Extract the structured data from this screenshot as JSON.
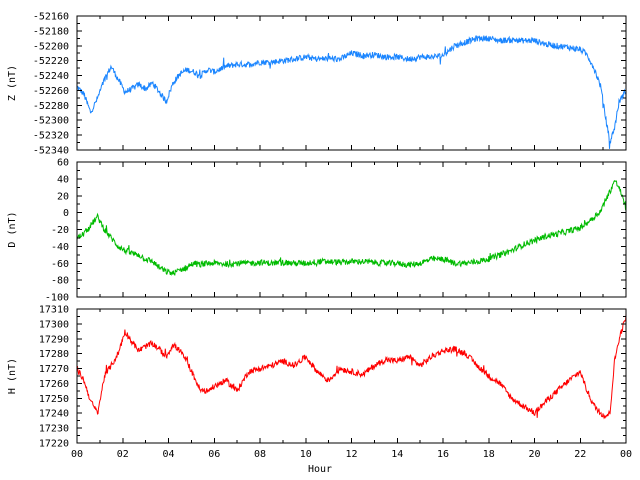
{
  "chart_data": {
    "type": "line",
    "xlabel": "Hour",
    "x_tick_labels": [
      "00",
      "02",
      "04",
      "06",
      "08",
      "10",
      "12",
      "14",
      "16",
      "18",
      "20",
      "22",
      "00"
    ],
    "xlim": [
      0,
      24
    ],
    "grid": false,
    "panels": [
      {
        "name": "Z",
        "ylabel": "Z (nT)",
        "color": "#1a85ff",
        "ylim": [
          -52340,
          -52160
        ],
        "yticks": [
          -52340,
          -52320,
          -52300,
          -52280,
          -52260,
          -52240,
          -52220,
          -52200,
          -52180,
          -52160
        ],
        "series": {
          "x": [
            0,
            0.3,
            0.6,
            0.9,
            1.2,
            1.5,
            1.8,
            2.1,
            2.4,
            2.7,
            3.0,
            3.3,
            3.6,
            3.9,
            4.2,
            4.5,
            4.8,
            5.1,
            5.4,
            5.7,
            6.0,
            6.5,
            7.0,
            7.5,
            8.0,
            8.5,
            9.0,
            9.5,
            10.0,
            10.5,
            11.0,
            11.5,
            12.0,
            12.5,
            13.0,
            13.5,
            14.0,
            14.5,
            15.0,
            15.5,
            16.0,
            16.5,
            17.0,
            17.5,
            18.0,
            18.5,
            19.0,
            19.5,
            20.0,
            20.5,
            21.0,
            21.5,
            22.0,
            22.3,
            22.6,
            22.9,
            23.1,
            23.3,
            23.5,
            23.7,
            24.0
          ],
          "values": [
            -52255,
            -52265,
            -52290,
            -52270,
            -52245,
            -52228,
            -52245,
            -52262,
            -52258,
            -52252,
            -52258,
            -52250,
            -52262,
            -52275,
            -52250,
            -52238,
            -52232,
            -52235,
            -52240,
            -52232,
            -52235,
            -52228,
            -52225,
            -52225,
            -52222,
            -52222,
            -52220,
            -52218,
            -52215,
            -52218,
            -52217,
            -52218,
            -52210,
            -52213,
            -52212,
            -52215,
            -52215,
            -52218,
            -52215,
            -52215,
            -52213,
            -52200,
            -52195,
            -52190,
            -52190,
            -52193,
            -52192,
            -52193,
            -52193,
            -52198,
            -52200,
            -52202,
            -52205,
            -52212,
            -52230,
            -52255,
            -52295,
            -52330,
            -52310,
            -52275,
            -52260
          ]
        }
      },
      {
        "name": "D",
        "ylabel": "D (nT)",
        "color": "#00bb00",
        "ylim": [
          -100,
          60
        ],
        "yticks": [
          -100,
          -80,
          -60,
          -40,
          -20,
          0,
          20,
          40,
          60
        ],
        "series": {
          "x": [
            0,
            0.3,
            0.6,
            0.9,
            1.2,
            1.5,
            1.8,
            2.1,
            2.4,
            2.7,
            3.0,
            3.3,
            3.6,
            3.9,
            4.2,
            4.5,
            4.8,
            5.1,
            5.4,
            5.7,
            6.0,
            6.5,
            7.0,
            7.5,
            8.0,
            8.5,
            9.0,
            9.5,
            10.0,
            10.5,
            11.0,
            11.5,
            12.0,
            12.5,
            13.0,
            13.5,
            14.0,
            14.5,
            15.0,
            15.5,
            16.0,
            16.5,
            17.0,
            17.5,
            18.0,
            18.5,
            19.0,
            19.5,
            20.0,
            20.5,
            21.0,
            21.5,
            22.0,
            22.3,
            22.6,
            22.9,
            23.1,
            23.3,
            23.5,
            23.7,
            24.0
          ],
          "values": [
            -30,
            -25,
            -15,
            -5,
            -20,
            -30,
            -40,
            -45,
            -48,
            -50,
            -55,
            -58,
            -65,
            -70,
            -72,
            -68,
            -65,
            -60,
            -62,
            -60,
            -60,
            -61,
            -60,
            -60,
            -59,
            -60,
            -59,
            -60,
            -60,
            -58,
            -58,
            -59,
            -58,
            -58,
            -59,
            -60,
            -60,
            -62,
            -60,
            -55,
            -55,
            -60,
            -60,
            -58,
            -55,
            -50,
            -45,
            -38,
            -33,
            -28,
            -25,
            -22,
            -18,
            -12,
            -5,
            2,
            15,
            25,
            38,
            30,
            5
          ]
        }
      },
      {
        "name": "H",
        "ylabel": "H (nT)",
        "color": "#ff0000",
        "ylim": [
          17220,
          17310
        ],
        "yticks": [
          17220,
          17230,
          17240,
          17250,
          17260,
          17270,
          17280,
          17290,
          17300,
          17310
        ],
        "series": {
          "x": [
            0,
            0.3,
            0.6,
            0.9,
            1.2,
            1.5,
            1.8,
            2.1,
            2.4,
            2.7,
            3.0,
            3.3,
            3.6,
            3.9,
            4.2,
            4.5,
            4.8,
            5.1,
            5.4,
            5.7,
            6.0,
            6.5,
            7.0,
            7.5,
            8.0,
            8.5,
            9.0,
            9.5,
            10.0,
            10.5,
            11.0,
            11.5,
            12.0,
            12.5,
            13.0,
            13.5,
            14.0,
            14.5,
            15.0,
            15.5,
            16.0,
            16.5,
            17.0,
            17.5,
            18.0,
            18.5,
            19.0,
            19.5,
            20.0,
            20.5,
            21.0,
            21.5,
            22.0,
            22.3,
            22.6,
            22.9,
            23.1,
            23.3,
            23.5,
            23.7,
            24.0
          ],
          "values": [
            17270,
            17262,
            17248,
            17240,
            17265,
            17272,
            17280,
            17295,
            17288,
            17282,
            17285,
            17287,
            17283,
            17278,
            17286,
            17282,
            17275,
            17265,
            17255,
            17255,
            17258,
            17262,
            17255,
            17268,
            17270,
            17272,
            17275,
            17272,
            17278,
            17268,
            17262,
            17270,
            17268,
            17266,
            17272,
            17276,
            17275,
            17278,
            17272,
            17278,
            17282,
            17283,
            17280,
            17272,
            17265,
            17260,
            17250,
            17245,
            17240,
            17248,
            17255,
            17262,
            17268,
            17255,
            17245,
            17240,
            17238,
            17240,
            17275,
            17290,
            17305
          ]
        }
      }
    ]
  }
}
